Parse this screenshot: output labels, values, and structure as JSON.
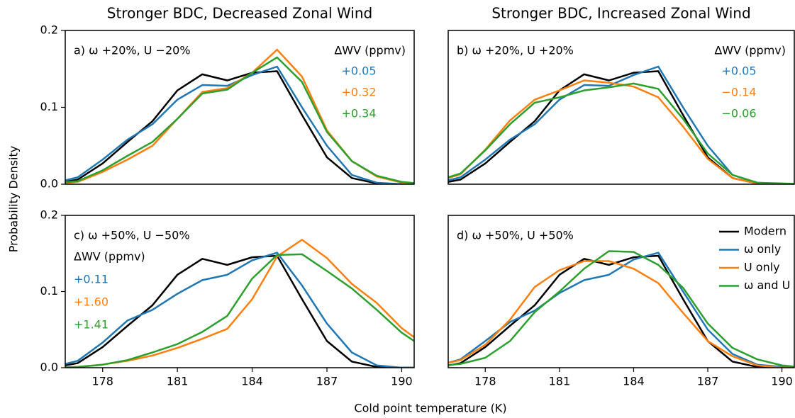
{
  "figure": {
    "xlabel": "Cold point temperature (K)",
    "ylabel": "Probability Density"
  },
  "chart_data": [
    {
      "type": "line",
      "title": "Stronger BDC, Decreased Zonal Wind",
      "annotations": {
        "label": "a) ω +20%, U −20%",
        "wv_title": "ΔWV (ppmv)",
        "wv_values": [
          "+0.05",
          "+0.32",
          "+0.34"
        ]
      },
      "x": [
        176,
        177,
        178,
        179,
        180,
        181,
        182,
        183,
        184,
        185,
        186,
        187,
        188,
        189,
        190,
        191
      ],
      "xlim": [
        176.5,
        190.5
      ],
      "ylim": [
        0,
        0.2
      ],
      "yticks": [
        {
          "value": 0,
          "label": "0.0"
        },
        {
          "value": 0.1,
          "label": "0.1"
        },
        {
          "value": 0.2,
          "label": "0.2"
        }
      ],
      "series": [
        {
          "color": "#000000",
          "values": [
            0.0,
            0.006,
            0.027,
            0.055,
            0.082,
            0.122,
            0.143,
            0.135,
            0.145,
            0.147,
            0.09,
            0.035,
            0.008,
            0.001,
            0,
            0
          ]
        },
        {
          "color": "#1f77b4",
          "values": [
            0.001,
            0.009,
            0.032,
            0.058,
            0.078,
            0.11,
            0.129,
            0.128,
            0.142,
            0.153,
            0.1,
            0.05,
            0.012,
            0.002,
            0,
            0
          ]
        },
        {
          "color": "#ff7f0e",
          "values": [
            0,
            0.003,
            0.016,
            0.032,
            0.05,
            0.085,
            0.12,
            0.125,
            0.145,
            0.175,
            0.14,
            0.07,
            0.03,
            0.01,
            0.002,
            0
          ]
        },
        {
          "color": "#2ca02c",
          "values": [
            0.001,
            0.004,
            0.018,
            0.037,
            0.055,
            0.085,
            0.118,
            0.123,
            0.145,
            0.165,
            0.133,
            0.068,
            0.03,
            0.011,
            0.003,
            0
          ]
        }
      ]
    },
    {
      "type": "line",
      "title": "Stronger BDC, Increased Zonal Wind",
      "annotations": {
        "label": "b) ω +20%, U +20%",
        "wv_title": "ΔWV (ppmv)",
        "wv_values": [
          "+0.05",
          "−0.14",
          "−0.06"
        ]
      },
      "x": [
        176,
        177,
        178,
        179,
        180,
        181,
        182,
        183,
        184,
        185,
        186,
        187,
        188,
        189,
        190,
        191
      ],
      "xlim": [
        176.5,
        190.5
      ],
      "ylim": [
        0,
        0.2
      ],
      "series": [
        {
          "color": "#000000",
          "values": [
            0.0,
            0.006,
            0.027,
            0.055,
            0.082,
            0.122,
            0.143,
            0.135,
            0.145,
            0.147,
            0.09,
            0.035,
            0.008,
            0.001,
            0,
            0
          ]
        },
        {
          "color": "#1f77b4",
          "values": [
            0.001,
            0.009,
            0.032,
            0.058,
            0.078,
            0.11,
            0.129,
            0.128,
            0.142,
            0.153,
            0.1,
            0.05,
            0.012,
            0.002,
            0,
            0
          ]
        },
        {
          "color": "#ff7f0e",
          "values": [
            0.003,
            0.013,
            0.045,
            0.083,
            0.11,
            0.122,
            0.135,
            0.132,
            0.127,
            0.113,
            0.075,
            0.033,
            0.008,
            0.001,
            0,
            0
          ]
        },
        {
          "color": "#2ca02c",
          "values": [
            0.004,
            0.014,
            0.044,
            0.078,
            0.106,
            0.113,
            0.122,
            0.126,
            0.131,
            0.124,
            0.085,
            0.04,
            0.012,
            0.002,
            0.001,
            0
          ]
        }
      ]
    },
    {
      "type": "line",
      "annotations": {
        "label": "c) ω +50%, U −50%",
        "wv_title": "ΔWV (ppmv)",
        "wv_values": [
          "+0.11",
          "+1.60",
          "+1.41"
        ]
      },
      "x": [
        176,
        177,
        178,
        179,
        180,
        181,
        182,
        183,
        184,
        185,
        186,
        187,
        188,
        189,
        190,
        191
      ],
      "xlim": [
        176.5,
        190.5
      ],
      "ylim": [
        0,
        0.2
      ],
      "xticks": [
        178,
        181,
        184,
        187,
        190
      ],
      "yticks": [
        {
          "value": 0,
          "label": "0.0"
        },
        {
          "value": 0.1,
          "label": "0.1"
        },
        {
          "value": 0.2,
          "label": "0.2"
        }
      ],
      "series": [
        {
          "color": "#000000",
          "values": [
            0.0,
            0.006,
            0.027,
            0.055,
            0.082,
            0.122,
            0.143,
            0.135,
            0.145,
            0.147,
            0.09,
            0.035,
            0.008,
            0.001,
            0,
            0
          ]
        },
        {
          "color": "#1f77b4",
          "values": [
            0.001,
            0.009,
            0.033,
            0.062,
            0.076,
            0.097,
            0.115,
            0.122,
            0.141,
            0.151,
            0.108,
            0.058,
            0.02,
            0.003,
            0,
            0
          ]
        },
        {
          "color": "#ff7f0e",
          "values": [
            0,
            0.001,
            0.004,
            0.009,
            0.016,
            0.026,
            0.038,
            0.051,
            0.09,
            0.146,
            0.168,
            0.144,
            0.11,
            0.085,
            0.052,
            0.028
          ]
        },
        {
          "color": "#2ca02c",
          "values": [
            0,
            0.001,
            0.004,
            0.01,
            0.02,
            0.031,
            0.047,
            0.068,
            0.117,
            0.148,
            0.149,
            0.127,
            0.104,
            0.076,
            0.046,
            0.024
          ]
        }
      ]
    },
    {
      "type": "line",
      "annotations": {
        "label": "d) ω +50%, U +50%"
      },
      "legend": "upper right",
      "x": [
        176,
        177,
        178,
        179,
        180,
        181,
        182,
        183,
        184,
        185,
        186,
        187,
        188,
        189,
        190,
        191
      ],
      "xlim": [
        176.5,
        190.5
      ],
      "ylim": [
        0,
        0.2
      ],
      "xticks": [
        178,
        181,
        184,
        187,
        190
      ],
      "series": [
        {
          "name": "Modern",
          "color": "#000000",
          "values": [
            0.0,
            0.006,
            0.027,
            0.055,
            0.082,
            0.122,
            0.143,
            0.135,
            0.145,
            0.147,
            0.09,
            0.035,
            0.008,
            0.001,
            0,
            0
          ]
        },
        {
          "name": "ω only",
          "color": "#1f77b4",
          "values": [
            0.002,
            0.011,
            0.035,
            0.06,
            0.075,
            0.098,
            0.115,
            0.122,
            0.142,
            0.151,
            0.1,
            0.05,
            0.018,
            0.004,
            0.001,
            0
          ]
        },
        {
          "name": "U only",
          "color": "#ff7f0e",
          "values": [
            0.003,
            0.01,
            0.03,
            0.063,
            0.106,
            0.128,
            0.14,
            0.14,
            0.13,
            0.111,
            0.072,
            0.035,
            0.015,
            0.003,
            0,
            0
          ]
        },
        {
          "name": "ω and U",
          "color": "#2ca02c",
          "values": [
            0.002,
            0.005,
            0.013,
            0.035,
            0.073,
            0.1,
            0.13,
            0.153,
            0.152,
            0.135,
            0.105,
            0.058,
            0.026,
            0.011,
            0.003,
            0
          ]
        }
      ]
    }
  ]
}
